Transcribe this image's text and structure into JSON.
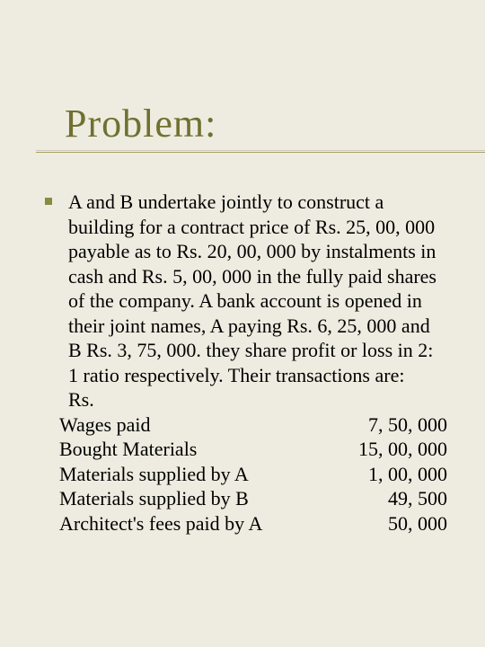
{
  "slide": {
    "title": "Problem:",
    "paragraph": "A and B undertake jointly to construct a building for a contract price of Rs. 25, 00, 000 payable as to Rs. 20, 00, 000 by instalments in cash and Rs. 5, 00, 000 in the fully paid shares of the company. A bank account is opened in their joint names, A paying Rs. 6, 25, 000 and B Rs. 3, 75, 000. they share profit or loss in 2: 1 ratio respectively. Their transactions are:",
    "currency_label": "Rs.",
    "items": [
      {
        "label": "Wages paid",
        "value": "7, 50, 000"
      },
      {
        "label": "Bought Materials",
        "value": "15, 00, 000"
      },
      {
        "label": "Materials supplied by A",
        "value": "1, 00, 000"
      },
      {
        "label": "Materials supplied by B",
        "value": "49, 500"
      },
      {
        "label": "Architect's fees paid by A",
        "value": "50, 000"
      }
    ]
  },
  "style": {
    "background_color": "#eeece0",
    "title_color": "#707030",
    "bullet_color": "#8a8a40",
    "underline_color": "#a8a060",
    "body_color": "#000000",
    "title_fontsize": 44,
    "body_fontsize": 22
  }
}
